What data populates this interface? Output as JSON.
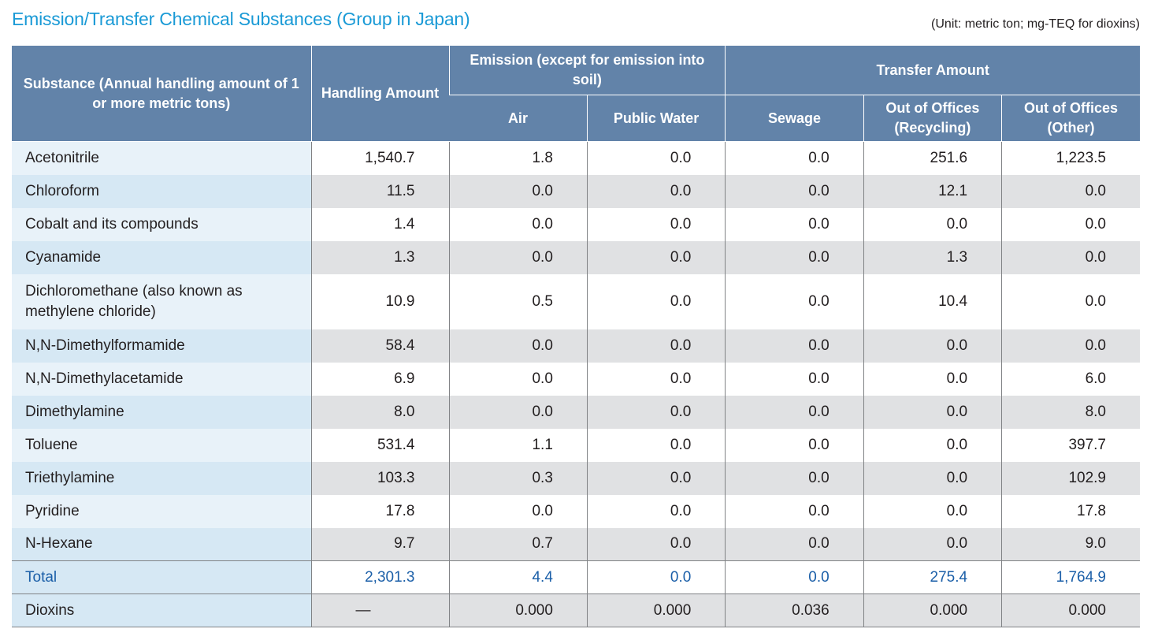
{
  "header": {
    "title": "Emission/Transfer Chemical Substances (Group in Japan)",
    "unit_note": "(Unit: metric ton; mg-TEQ for dioxins)"
  },
  "columns": {
    "substance": "Substance (Annual handling amount of 1 or more metric tons)",
    "handling": "Handling Amount",
    "emission_group": "Emission (except for emission into soil)",
    "transfer_group": "Transfer Amount",
    "air": "Air",
    "public_water": "Public Water",
    "sewage": "Sewage",
    "recycling": "Out of Offices (Recycling)",
    "other": "Out of Offices (Other)"
  },
  "rows": [
    {
      "name": "Acetonitrile",
      "handling": "1,540.7",
      "air": "1.8",
      "water": "0.0",
      "sewage": "0.0",
      "recycling": "251.6",
      "other": "1,223.5"
    },
    {
      "name": "Chloroform",
      "handling": "11.5",
      "air": "0.0",
      "water": "0.0",
      "sewage": "0.0",
      "recycling": "12.1",
      "other": "0.0"
    },
    {
      "name": "Cobalt and its compounds",
      "handling": "1.4",
      "air": "0.0",
      "water": "0.0",
      "sewage": "0.0",
      "recycling": "0.0",
      "other": "0.0"
    },
    {
      "name": "Cyanamide",
      "handling": "1.3",
      "air": "0.0",
      "water": "0.0",
      "sewage": "0.0",
      "recycling": "1.3",
      "other": "0.0"
    },
    {
      "name": "Dichloromethane (also known as methylene chloride)",
      "handling": "10.9",
      "air": "0.5",
      "water": "0.0",
      "sewage": "0.0",
      "recycling": "10.4",
      "other": "0.0"
    },
    {
      "name": "N,N-Dimethylformamide",
      "handling": "58.4",
      "air": "0.0",
      "water": "0.0",
      "sewage": "0.0",
      "recycling": "0.0",
      "other": "0.0"
    },
    {
      "name": "N,N-Dimethylacetamide",
      "handling": "6.9",
      "air": "0.0",
      "water": "0.0",
      "sewage": "0.0",
      "recycling": "0.0",
      "other": "6.0"
    },
    {
      "name": "Dimethylamine",
      "handling": "8.0",
      "air": "0.0",
      "water": "0.0",
      "sewage": "0.0",
      "recycling": "0.0",
      "other": "8.0"
    },
    {
      "name": "Toluene",
      "handling": "531.4",
      "air": "1.1",
      "water": "0.0",
      "sewage": "0.0",
      "recycling": "0.0",
      "other": "397.7"
    },
    {
      "name": "Triethylamine",
      "handling": "103.3",
      "air": "0.3",
      "water": "0.0",
      "sewage": "0.0",
      "recycling": "0.0",
      "other": "102.9"
    },
    {
      "name": "Pyridine",
      "handling": "17.8",
      "air": "0.0",
      "water": "0.0",
      "sewage": "0.0",
      "recycling": "0.0",
      "other": "17.8"
    },
    {
      "name": "N-Hexane",
      "handling": "9.7",
      "air": "0.7",
      "water": "0.0",
      "sewage": "0.0",
      "recycling": "0.0",
      "other": "9.0"
    }
  ],
  "total": {
    "name": "Total",
    "handling": "2,301.3",
    "air": "4.4",
    "water": "0.0",
    "sewage": "0.0",
    "recycling": "275.4",
    "other": "1,764.9"
  },
  "dioxins": {
    "name": "Dioxins",
    "handling": "—",
    "air": "0.000",
    "water": "0.000",
    "sewage": "0.036",
    "recycling": "0.000",
    "other": "0.000"
  }
}
